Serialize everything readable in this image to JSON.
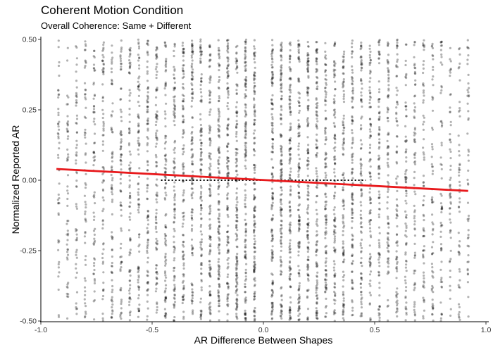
{
  "chart_data": {
    "type": "scatter",
    "title": "Coherent Motion Condition",
    "subtitle": "Overall Coherence: Same + Different",
    "xlabel": "AR Difference Between Shapes",
    "ylabel": "Normalized Reported AR",
    "xlim": [
      -1.0,
      1.0
    ],
    "ylim": [
      -0.5,
      0.5
    ],
    "x_ticks": [
      -1.0,
      -0.5,
      0.0,
      0.5,
      1.0
    ],
    "x_tick_labels": [
      "-1.0",
      "-0.5",
      "0.0",
      "0.5",
      "1.0"
    ],
    "y_ticks": [
      -0.5,
      -0.25,
      0.0,
      0.25,
      0.5
    ],
    "y_tick_labels": [
      "-0.50",
      "-0.25",
      "0.00",
      "0.25",
      "0.50"
    ],
    "grid": false,
    "points": {
      "x_levels": [
        -0.92,
        -0.88,
        -0.84,
        -0.8,
        -0.76,
        -0.72,
        -0.68,
        -0.64,
        -0.6,
        -0.56,
        -0.52,
        -0.48,
        -0.44,
        -0.4,
        -0.36,
        -0.32,
        -0.28,
        -0.24,
        -0.2,
        -0.16,
        -0.12,
        -0.08,
        -0.04,
        0.04,
        0.08,
        0.12,
        0.16,
        0.2,
        0.24,
        0.28,
        0.32,
        0.36,
        0.4,
        0.44,
        0.48,
        0.52,
        0.56,
        0.6,
        0.64,
        0.68,
        0.72,
        0.76,
        0.8,
        0.84,
        0.88,
        0.92
      ],
      "y_range": [
        -0.5,
        0.5
      ],
      "color": "#000000",
      "opacity": 0.3
    },
    "fit_line": {
      "x": [
        -0.93,
        0.92
      ],
      "y": [
        0.04,
        -0.038
      ],
      "color": "#e8191c"
    },
    "reference_line": {
      "x": [
        -0.46,
        0.46
      ],
      "y": [
        0.0,
        0.0
      ],
      "style": "dotted",
      "color": "#000000"
    }
  }
}
